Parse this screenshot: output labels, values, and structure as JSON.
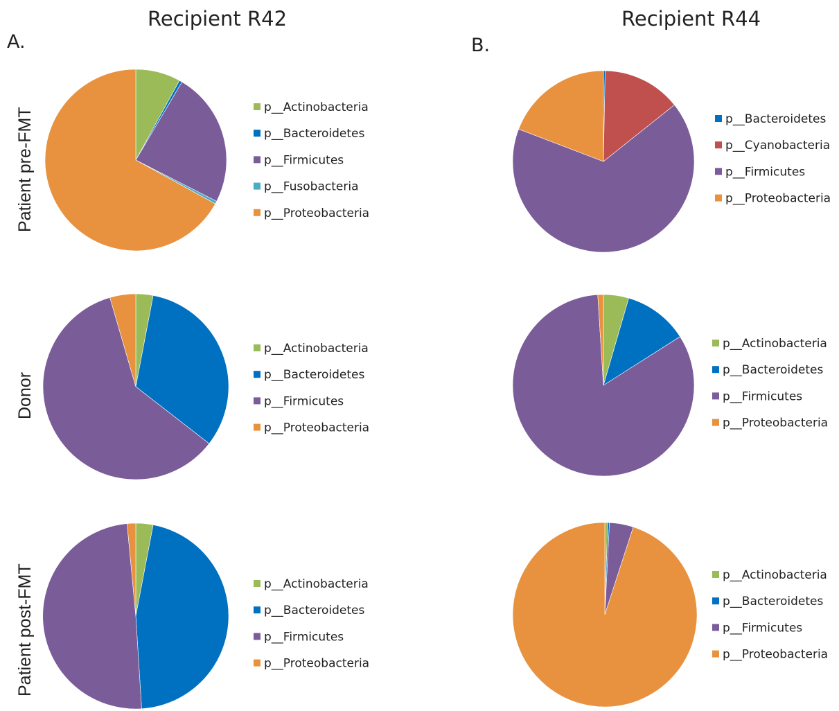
{
  "figure": {
    "column_titles": [
      "Recipient R42",
      "Recipient R44"
    ],
    "panel_letters": [
      "A.",
      "B."
    ],
    "row_labels": [
      "Patient pre-FMT",
      "Donor",
      "Patient post-FMT"
    ]
  },
  "colors": {
    "p__Actinobacteria": "#9bbb59",
    "p__Bacteroidetes": "#0070c0",
    "p__Cyanobacteria": "#c0504d",
    "p__Firmicutes": "#7a5c99",
    "p__Fusobacteria": "#4bacc6",
    "p__Proteobacteria": "#e8923f"
  },
  "chart_data": [
    {
      "type": "pie",
      "title": "",
      "column": "Recipient R42",
      "row": "Patient pre-FMT",
      "legend": [
        "p__Actinobacteria",
        "p__Bacteroidetes",
        "p__Firmicutes",
        "p__Fusobacteria",
        "p__Proteobacteria"
      ],
      "slices": [
        {
          "name": "p__Actinobacteria",
          "value": 8.0
        },
        {
          "name": "p__Bacteroidetes",
          "value": 0.5
        },
        {
          "name": "p__Firmicutes",
          "value": 24.0
        },
        {
          "name": "p__Fusobacteria",
          "value": 0.5
        },
        {
          "name": "p__Proteobacteria",
          "value": 67.0
        }
      ]
    },
    {
      "type": "pie",
      "title": "",
      "column": "Recipient R44",
      "row": "Patient pre-FMT",
      "legend": [
        "p__Bacteroidetes",
        "p__Cyanobacteria",
        "p__Firmicutes",
        "p__Proteobacteria"
      ],
      "slices": [
        {
          "name": "p__Bacteroidetes",
          "value": 0.3
        },
        {
          "name": "p__Cyanobacteria",
          "value": 14.0
        },
        {
          "name": "p__Firmicutes",
          "value": 66.5
        },
        {
          "name": "p__Proteobacteria",
          "value": 19.2
        }
      ]
    },
    {
      "type": "pie",
      "title": "",
      "column": "Recipient R42",
      "row": "Donor",
      "legend": [
        "p__Actinobacteria",
        "p__Bacteroidetes",
        "p__Firmicutes",
        "p__Proteobacteria"
      ],
      "slices": [
        {
          "name": "p__Actinobacteria",
          "value": 3.0
        },
        {
          "name": "p__Bacteroidetes",
          "value": 32.5
        },
        {
          "name": "p__Firmicutes",
          "value": 60.0
        },
        {
          "name": "p__Proteobacteria",
          "value": 4.5
        }
      ]
    },
    {
      "type": "pie",
      "title": "",
      "column": "Recipient R44",
      "row": "Donor",
      "legend": [
        "p__Actinobacteria",
        "p__Bacteroidetes",
        "p__Firmicutes",
        "p__Proteobacteria"
      ],
      "slices": [
        {
          "name": "p__Actinobacteria",
          "value": 4.5
        },
        {
          "name": "p__Bacteroidetes",
          "value": 11.5
        },
        {
          "name": "p__Firmicutes",
          "value": 83.0
        },
        {
          "name": "p__Proteobacteria",
          "value": 1.0
        }
      ]
    },
    {
      "type": "pie",
      "title": "",
      "column": "Recipient R42",
      "row": "Patient post-FMT",
      "legend": [
        "p__Actinobacteria",
        "p__Bacteroidetes",
        "p__Firmicutes",
        "p__Proteobacteria"
      ],
      "slices": [
        {
          "name": "p__Actinobacteria",
          "value": 3.0
        },
        {
          "name": "p__Bacteroidetes",
          "value": 46.0
        },
        {
          "name": "p__Firmicutes",
          "value": 49.5
        },
        {
          "name": "p__Proteobacteria",
          "value": 1.5
        }
      ]
    },
    {
      "type": "pie",
      "title": "",
      "column": "Recipient R44",
      "row": "Patient post-FMT",
      "legend": [
        "p__Actinobacteria",
        "p__Bacteroidetes",
        "p__Firmicutes",
        "p__Proteobacteria"
      ],
      "slices": [
        {
          "name": "p__Actinobacteria",
          "value": 0.5
        },
        {
          "name": "p__Bacteroidetes",
          "value": 0.3
        },
        {
          "name": "p__Firmicutes",
          "value": 4.2
        },
        {
          "name": "p__Proteobacteria",
          "value": 95.0
        }
      ]
    }
  ]
}
